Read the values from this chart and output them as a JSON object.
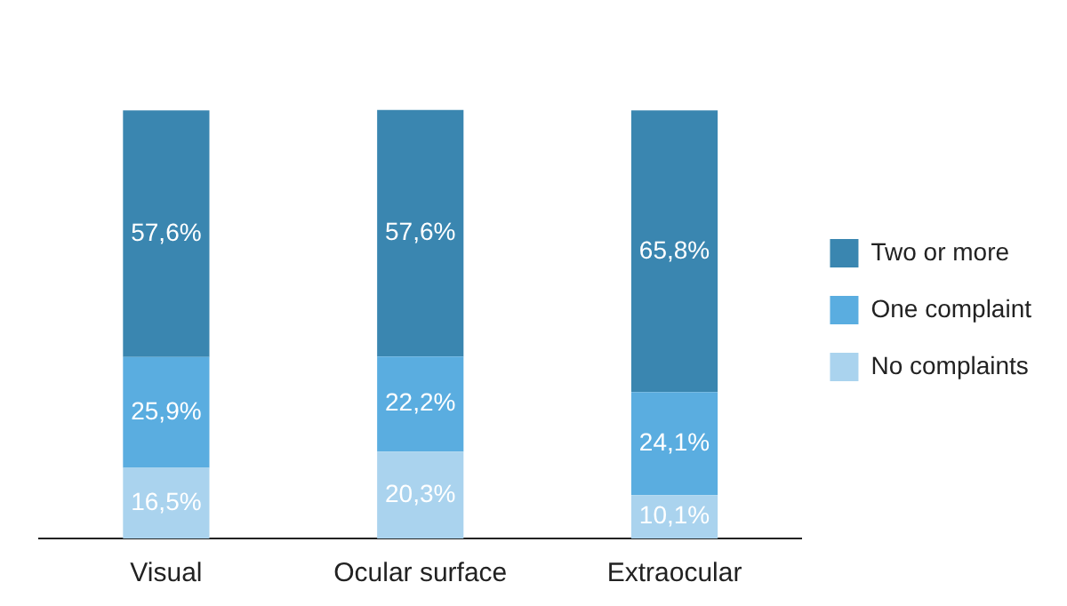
{
  "chart_data": {
    "type": "bar",
    "stacked": true,
    "legend": "right",
    "categories": [
      "Visual",
      "Ocular surface",
      "Extraocular"
    ],
    "series": [
      {
        "name": "No complaints",
        "color": "#aad3ee",
        "values": [
          16.5,
          20.3,
          10.1
        ],
        "value_labels": [
          "16,5%",
          "20,3%",
          "10,1%"
        ]
      },
      {
        "name": "One complaint",
        "color": "#5aade0",
        "values": [
          25.9,
          22.2,
          24.1
        ],
        "value_labels": [
          "25,9%",
          "22,2%",
          "24,1%"
        ]
      },
      {
        "name": "Two or more",
        "color": "#3a86b0",
        "values": [
          57.6,
          57.6,
          65.8
        ],
        "value_labels": [
          "57,6%",
          "57,6%",
          "65,8%"
        ]
      }
    ]
  }
}
